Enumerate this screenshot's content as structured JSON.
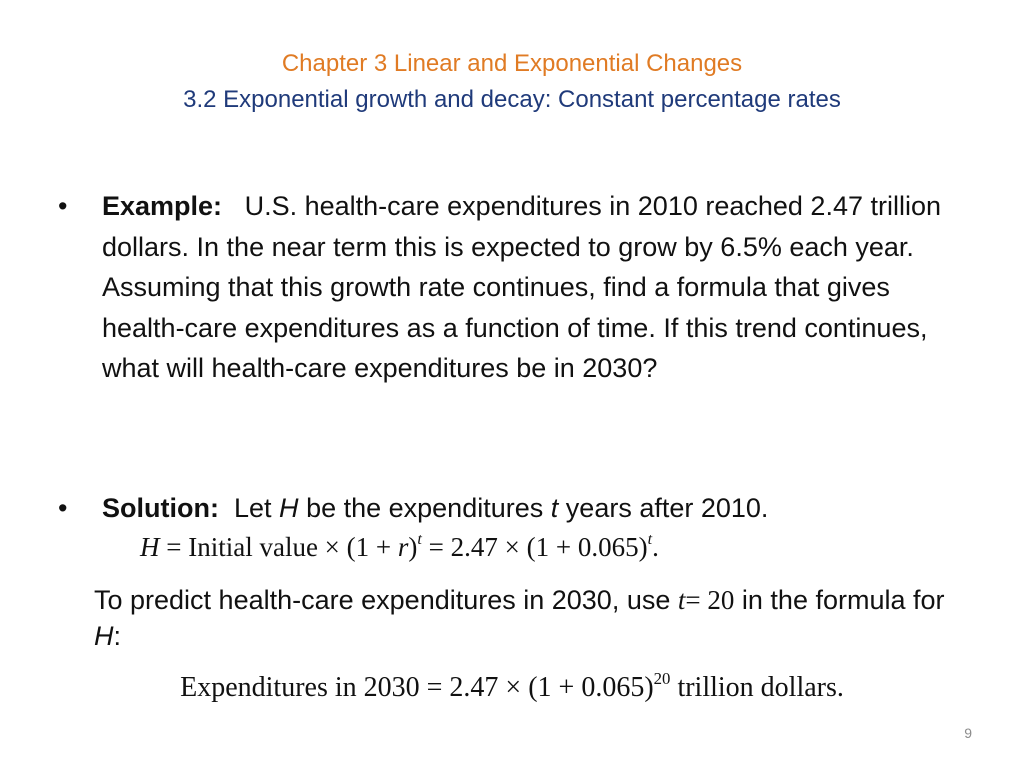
{
  "title": {
    "line1": "Chapter 3 Linear and Exponential Changes",
    "line2": "3.2 Exponential growth and decay: Constant percentage rates",
    "colors": {
      "line1": "#e07b24",
      "line2": "#1f3a7a"
    }
  },
  "bullet_symbol": "•",
  "example": {
    "label": "Example:",
    "text": "U.S. health-care expenditures in 2010 reached 2.47 trillion dollars. In the near term this is expected to grow by 6.5% each year.  Assuming that this growth rate continues, find a formula that gives health-care expenditures as a function of time.  If this trend continues, what will health-care expenditures be in 2030?"
  },
  "solution": {
    "label": "Solution:",
    "let": "Let",
    "H": "H",
    "be_the": "be the expenditures",
    "t": "t",
    "years_after": "years after 2010."
  },
  "formula": {
    "H": "H",
    "eq1": " = Initial value  × (1 + ",
    "r": "r",
    "close": ")",
    "t": "t",
    "eq2": " = 2.47 × (1 + 0.065)",
    "t2": "t",
    "period": "."
  },
  "predict": {
    "text1": "To predict health-care expenditures in 2030, use",
    "t": "t",
    "eq": "= 20",
    "text2": "in the formula for",
    "H": "H",
    "colon": ":"
  },
  "expenditures": {
    "text": "Expenditures in 2030 = 2.47 × (1 + 0.065)",
    "exp": "20",
    "tail": " trillion dollars."
  },
  "page_number": "9"
}
